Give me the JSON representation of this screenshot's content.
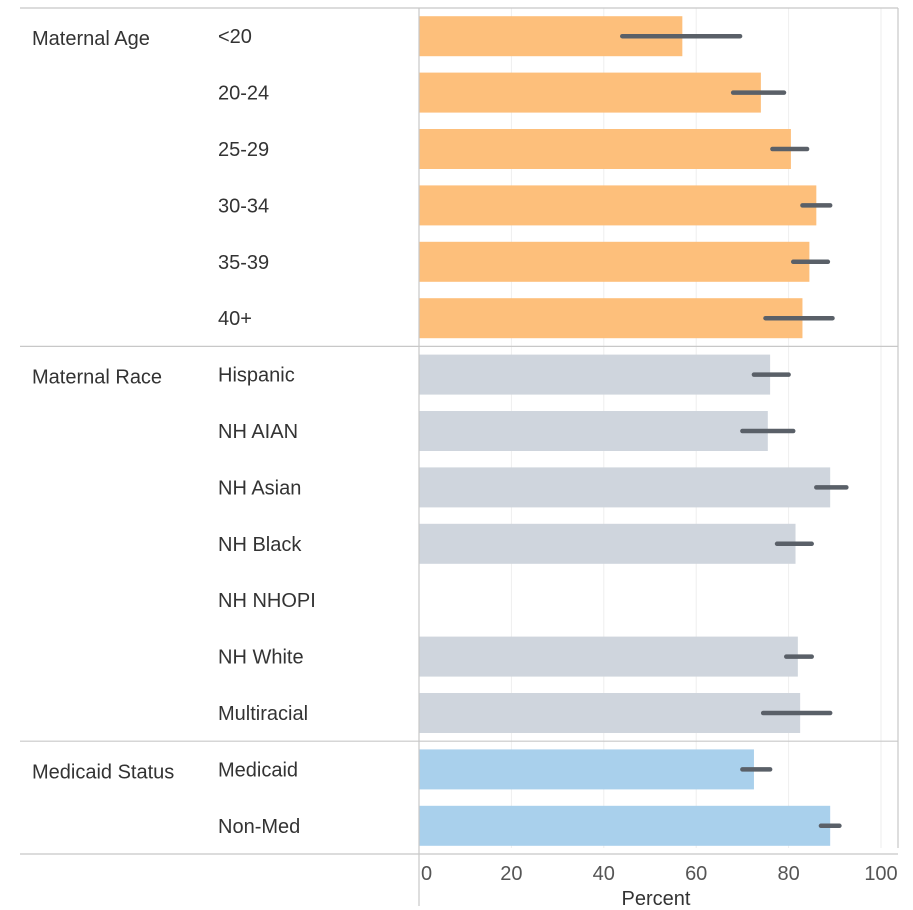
{
  "chart_data": {
    "type": "bar",
    "orientation": "horizontal",
    "xlabel": "Percent",
    "xlim": [
      0,
      100
    ],
    "xticks": [
      0,
      20,
      40,
      60,
      80,
      100
    ],
    "grid": true,
    "groups": [
      {
        "name": "Maternal Age",
        "color": "#fdbf7b",
        "rows": [
          {
            "label": "<20",
            "value": 57.0,
            "ci": [
              44.0,
              69.5
            ]
          },
          {
            "label": "20-24",
            "value": 74.0,
            "ci": [
              68.0,
              79.0
            ]
          },
          {
            "label": "25-29",
            "value": 80.5,
            "ci": [
              76.5,
              84.0
            ]
          },
          {
            "label": "30-34",
            "value": 86.0,
            "ci": [
              83.0,
              89.0
            ]
          },
          {
            "label": "35-39",
            "value": 84.5,
            "ci": [
              81.0,
              88.5
            ]
          },
          {
            "label": "40+",
            "value": 83.0,
            "ci": [
              75.0,
              89.5
            ]
          }
        ]
      },
      {
        "name": "Maternal Race",
        "color": "#cfd5dd",
        "rows": [
          {
            "label": "Hispanic",
            "value": 76.0,
            "ci": [
              72.5,
              80.0
            ]
          },
          {
            "label": "NH AIAN",
            "value": 75.5,
            "ci": [
              70.0,
              81.0
            ]
          },
          {
            "label": "NH Asian",
            "value": 89.0,
            "ci": [
              86.0,
              92.5
            ]
          },
          {
            "label": "NH Black",
            "value": 81.5,
            "ci": [
              77.5,
              85.0
            ]
          },
          {
            "label": "NH NHOPI",
            "value": null,
            "ci": null
          },
          {
            "label": "NH White",
            "value": 82.0,
            "ci": [
              79.5,
              85.0
            ]
          },
          {
            "label": "Multiracial",
            "value": 82.5,
            "ci": [
              74.5,
              89.0
            ]
          }
        ]
      },
      {
        "name": "Medicaid Status",
        "color": "#a9d0ec",
        "rows": [
          {
            "label": "Medicaid",
            "value": 72.5,
            "ci": [
              70.0,
              76.0
            ]
          },
          {
            "label": "Non-Med",
            "value": 89.0,
            "ci": [
              87.0,
              91.0
            ]
          }
        ]
      }
    ]
  }
}
